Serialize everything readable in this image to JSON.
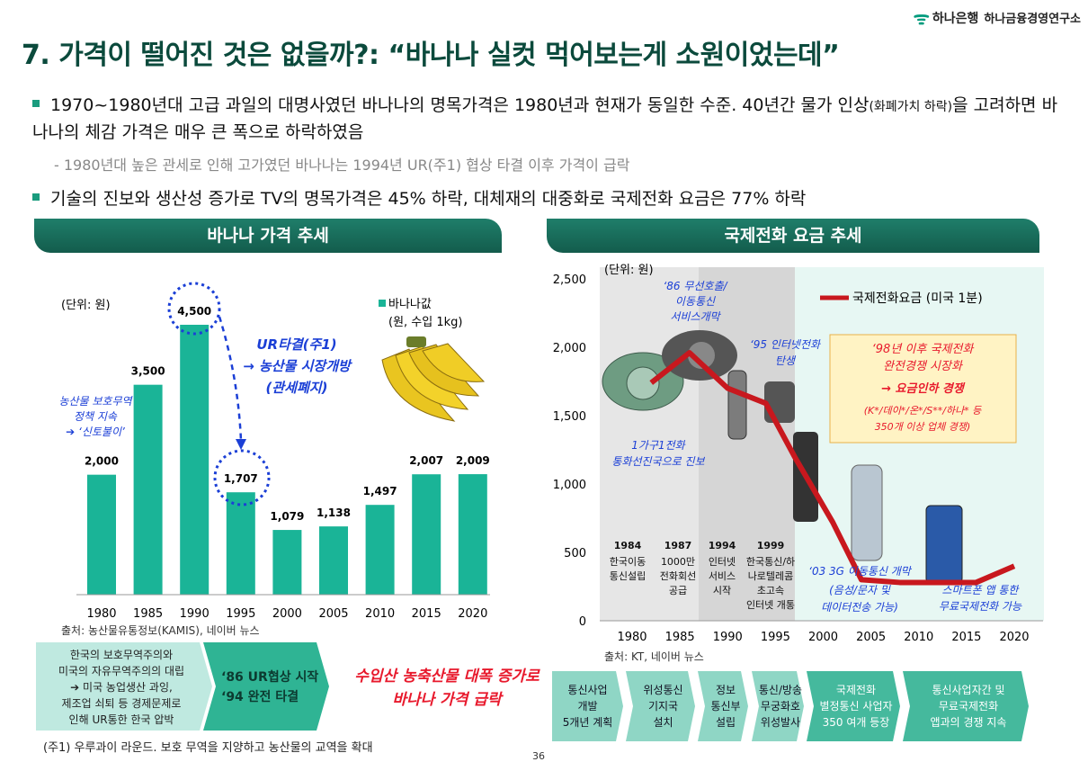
{
  "header": {
    "brand": "하나은행",
    "institute": "하나금융경영연구소",
    "title": "7. 가격이 떨어진 것은 없을까?: “바나나 실컷 먹어보는게 소원이었는데”"
  },
  "bullets": {
    "b1_part1": "1970~1980년대 고급 과일의 대명사였던 바나나의 명목가격은 1980년과 현재가 동일한 수준. 40년간 물가 인상",
    "b1_small": "(화폐가치 하락)",
    "b1_part2": "을 고려하면 바나나의 체감 가격은 매우 큰 폭으로 하락하였음",
    "b1_note": "- 1980년대 높은 관세로 인해 고가였던 바나나는 1994년 UR(주1) 협상 타결 이후 가격이 급락",
    "b2": "기술의 진보와 생산성 증가로 TV의 명목가격은 45% 하락, 대체재의 대중화로 국제전화 요금은 77% 하락"
  },
  "banana": {
    "banner": "바나나 가격 추세",
    "unit": "(단위: 원)",
    "legend1": "바나나값",
    "legend2": "(원, 수입 1kg)",
    "source": "출처: 농산물유통정보(KAMIS), 네이버 뉴스",
    "ann_left": [
      "농산물 보호무역",
      "정책 지속",
      "➔ ‘신토불이’"
    ],
    "ann_ur": [
      "UR타결(주1)",
      "→ 농산물 시장개방",
      "(관세폐지)"
    ],
    "flow": {
      "box1": [
        "한국의 보호무역주의와",
        "미국의 자유무역주의의 대립",
        "➔ 미국 농업생산 과잉,",
        "제조업 쇠퇴 등 경제문제로",
        "인해 UR통한 한국 압박"
      ],
      "box2": [
        "‘86 UR협상 시작",
        "‘94 완전 타결"
      ],
      "result": [
        "수입산 농축산물 대폭 증가로",
        "바나나 가격 급락"
      ]
    }
  },
  "phone": {
    "banner": "국제전화 요금 추세",
    "unit": "(단위: 원)",
    "legend": "국제전화요금 (미국 1분)",
    "source": "출처: KT, 네이버 뉴스",
    "ann86": [
      "‘86 무선호출/",
      "이동통신",
      "서비스개막"
    ],
    "ann95": [
      "‘95 인터넷전화",
      "탄생"
    ],
    "ann_home": [
      "1가구1전화",
      "통화선진국으로 진보"
    ],
    "ann98": [
      "‘98년 이후 국제전화",
      "완전경쟁 시장화",
      "→ 요금인하 경쟁",
      "(K*/데이*/온*/S**/하나* 등",
      "350개 이상 업체 경쟁)"
    ],
    "ann03": [
      "‘03 3G 이동통신 개막",
      "(음성/문자 및",
      "데이터전송 가능)"
    ],
    "ann_smart": [
      "스마트폰 앱 통한",
      "무료국제전화 가능"
    ],
    "milestones": [
      {
        "year": "1984",
        "lines": [
          "한국이동",
          "통신설립"
        ]
      },
      {
        "year": "1987",
        "lines": [
          "1000만",
          "전화회선",
          "공급"
        ]
      },
      {
        "year": "1994",
        "lines": [
          "인터넷",
          "서비스",
          "시작"
        ]
      },
      {
        "year": "1999",
        "lines": [
          "한국통신/하",
          "나로텔레콤",
          "초고속",
          "인터넷 개통"
        ]
      }
    ],
    "flow": [
      [
        "통신사업",
        "개발",
        "5개년 계획"
      ],
      [
        "위성통신",
        "기지국",
        "설치"
      ],
      [
        "정보",
        "통신부",
        "설립"
      ],
      [
        "통신/방송",
        "무궁화호",
        "위성발사"
      ],
      [
        "국제전화",
        "별정통신 사업자",
        "350 여개 등장"
      ],
      [
        "통신사업자간 및",
        "무료국제전화",
        "앱과의 경쟁 지속"
      ]
    ]
  },
  "footnote": "(주1) 우루과이 라운드. 보호 무역을 지양하고 농산물의 교역을 확대",
  "page_number": "36",
  "colors": {
    "accent": "#1f7e6a",
    "bar": "#1ab497",
    "line": "#c8181e",
    "annotation_blue": "#1b3fd6",
    "result_red": "#e8192c"
  },
  "chart_data": [
    {
      "type": "bar",
      "title": "바나나 가격 추세",
      "ylabel": "(단위: 원)",
      "categories": [
        "1980",
        "1985",
        "1990",
        "1995",
        "2000",
        "2005",
        "2010",
        "2015",
        "2020"
      ],
      "series": [
        {
          "name": "바나나값 (원, 수입 1kg)",
          "values": [
            2000,
            3500,
            4500,
            1707,
            1079,
            1138,
            1497,
            2007,
            2009
          ]
        }
      ],
      "ylim": [
        0,
        5000
      ]
    },
    {
      "type": "line",
      "title": "국제전화 요금 추세",
      "ylabel": "(단위: 원)",
      "x": [
        1982,
        1986,
        1990,
        1994,
        1997,
        2001,
        2004,
        2008,
        2012,
        2016,
        2020
      ],
      "series": [
        {
          "name": "국제전화요금 (미국 1분)",
          "values": [
            1740,
            1960,
            1700,
            1590,
            1200,
            720,
            300,
            280,
            280,
            280,
            400
          ]
        }
      ],
      "xticks": [
        "1980",
        "1985",
        "1990",
        "1995",
        "2000",
        "2005",
        "2010",
        "2015",
        "2020"
      ],
      "yticks": [
        "0",
        "500",
        "1,000",
        "1,500",
        "2,000",
        "2,500"
      ],
      "ylim": [
        0,
        2500
      ]
    }
  ]
}
